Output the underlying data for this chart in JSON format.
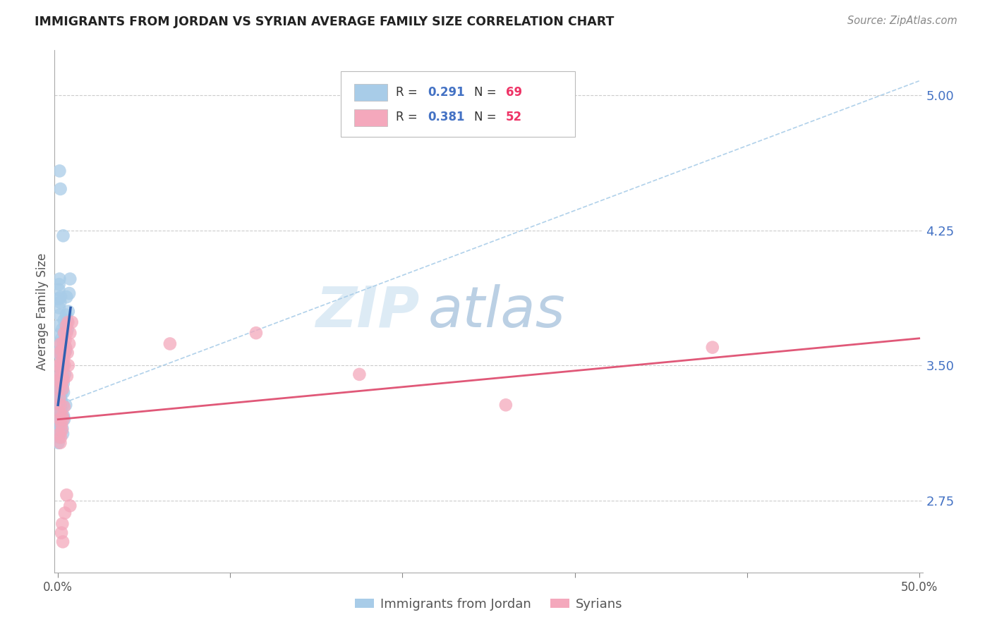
{
  "title": "IMMIGRANTS FROM JORDAN VS SYRIAN AVERAGE FAMILY SIZE CORRELATION CHART",
  "source": "Source: ZipAtlas.com",
  "ylabel": "Average Family Size",
  "right_yticks": [
    2.75,
    3.5,
    4.25,
    5.0
  ],
  "right_ytick_labels": [
    "2.75",
    "3.50",
    "4.25",
    "5.00"
  ],
  "legend_label_jordan": "Immigrants from Jordan",
  "legend_label_syrian": "Syrians",
  "jordan_color": "#a8cce8",
  "syrian_color": "#f4a8bc",
  "jordan_line_color": "#3060b0",
  "syrian_line_color": "#e05878",
  "dashed_line_color": "#a8cce8",
  "watermark_zip": "ZIP",
  "watermark_atlas": "atlas",
  "background_color": "#ffffff",
  "grid_color": "#cccccc",
  "title_color": "#222222",
  "right_axis_color": "#4472c4",
  "jordan_points": [
    [
      0.0008,
      3.44
    ],
    [
      0.001,
      3.42
    ],
    [
      0.0012,
      3.5
    ],
    [
      0.0013,
      3.38
    ],
    [
      0.0014,
      3.35
    ],
    [
      0.0015,
      3.4
    ],
    [
      0.0016,
      3.55
    ],
    [
      0.0016,
      3.32
    ],
    [
      0.0018,
      3.48
    ],
    [
      0.0019,
      3.58
    ],
    [
      0.002,
      3.3
    ],
    [
      0.0021,
      3.65
    ],
    [
      0.0022,
      3.42
    ],
    [
      0.0022,
      3.35
    ],
    [
      0.0024,
      3.7
    ],
    [
      0.0025,
      3.38
    ],
    [
      0.0026,
      3.55
    ],
    [
      0.0027,
      3.6
    ],
    [
      0.0028,
      3.45
    ],
    [
      0.0028,
      3.28
    ],
    [
      0.003,
      3.5
    ],
    [
      0.0031,
      3.4
    ],
    [
      0.0032,
      3.35
    ],
    [
      0.0034,
      3.68
    ],
    [
      0.0035,
      3.75
    ],
    [
      0.0038,
      3.58
    ],
    [
      0.0039,
      3.45
    ],
    [
      0.004,
      3.72
    ],
    [
      0.0042,
      3.6
    ],
    [
      0.0045,
      3.58
    ],
    [
      0.0048,
      3.78
    ],
    [
      0.005,
      3.88
    ],
    [
      0.0052,
      3.75
    ],
    [
      0.0055,
      3.7
    ],
    [
      0.006,
      3.8
    ],
    [
      0.0065,
      3.9
    ],
    [
      0.007,
      3.98
    ],
    [
      0.0009,
      4.58
    ],
    [
      0.0014,
      4.48
    ],
    [
      0.003,
      4.22
    ],
    [
      0.0022,
      3.22
    ],
    [
      0.0025,
      3.15
    ],
    [
      0.0028,
      3.12
    ],
    [
      0.0032,
      3.22
    ],
    [
      0.0018,
      3.25
    ],
    [
      0.0012,
      3.18
    ],
    [
      0.0036,
      3.2
    ],
    [
      0.0045,
      3.28
    ],
    [
      0.001,
      3.78
    ],
    [
      0.0007,
      3.82
    ],
    [
      0.0013,
      3.85
    ],
    [
      0.0015,
      3.88
    ],
    [
      0.0005,
      3.92
    ],
    [
      0.0004,
      3.87
    ],
    [
      0.0006,
      3.95
    ],
    [
      0.0009,
      3.98
    ],
    [
      0.0004,
      3.72
    ],
    [
      0.0006,
      3.67
    ],
    [
      0.0003,
      3.57
    ],
    [
      0.0004,
      3.62
    ],
    [
      0.0003,
      3.32
    ],
    [
      0.0003,
      3.27
    ],
    [
      0.0005,
      3.22
    ],
    [
      0.0006,
      3.17
    ],
    [
      0.0003,
      3.12
    ],
    [
      0.0002,
      3.07
    ],
    [
      0.0006,
      3.1
    ],
    [
      0.0012,
      3.14
    ],
    [
      0.0015,
      3.2
    ]
  ],
  "syrian_points": [
    [
      0.0004,
      3.42
    ],
    [
      0.0006,
      3.37
    ],
    [
      0.0009,
      3.32
    ],
    [
      0.001,
      3.24
    ],
    [
      0.0012,
      3.2
    ],
    [
      0.0013,
      3.28
    ],
    [
      0.0015,
      3.48
    ],
    [
      0.0016,
      3.62
    ],
    [
      0.0018,
      3.52
    ],
    [
      0.002,
      3.4
    ],
    [
      0.0022,
      3.58
    ],
    [
      0.0024,
      3.44
    ],
    [
      0.0026,
      3.5
    ],
    [
      0.0028,
      3.37
    ],
    [
      0.003,
      3.62
    ],
    [
      0.0032,
      3.42
    ],
    [
      0.0034,
      3.54
    ],
    [
      0.0036,
      3.68
    ],
    [
      0.0038,
      3.5
    ],
    [
      0.004,
      3.57
    ],
    [
      0.0042,
      3.64
    ],
    [
      0.0045,
      3.6
    ],
    [
      0.0048,
      3.72
    ],
    [
      0.005,
      3.68
    ],
    [
      0.0052,
      3.44
    ],
    [
      0.0055,
      3.57
    ],
    [
      0.0058,
      3.74
    ],
    [
      0.006,
      3.5
    ],
    [
      0.0065,
      3.62
    ],
    [
      0.007,
      3.68
    ],
    [
      0.008,
      3.74
    ],
    [
      0.001,
      3.12
    ],
    [
      0.0013,
      3.07
    ],
    [
      0.0016,
      3.1
    ],
    [
      0.002,
      3.17
    ],
    [
      0.0023,
      3.14
    ],
    [
      0.0026,
      3.22
    ],
    [
      0.003,
      3.2
    ],
    [
      0.0035,
      3.27
    ],
    [
      0.005,
      2.78
    ],
    [
      0.004,
      2.68
    ],
    [
      0.0025,
      2.62
    ],
    [
      0.007,
      2.72
    ],
    [
      0.002,
      2.57
    ],
    [
      0.0028,
      2.52
    ],
    [
      0.0007,
      3.57
    ],
    [
      0.0008,
      3.5
    ],
    [
      0.001,
      3.44
    ],
    [
      0.065,
      3.62
    ],
    [
      0.115,
      3.68
    ],
    [
      0.175,
      3.45
    ],
    [
      0.26,
      3.28
    ],
    [
      0.38,
      3.6
    ]
  ],
  "jordan_trend_x": [
    0.0,
    0.0073
  ],
  "jordan_trend_y": [
    3.28,
    3.82
  ],
  "syrian_trend_x": [
    0.0,
    0.5
  ],
  "syrian_trend_y": [
    3.2,
    3.65
  ],
  "dashed_trend_x": [
    0.0,
    0.5
  ],
  "dashed_trend_y": [
    3.28,
    5.08
  ],
  "xlim": [
    -0.002,
    0.502
  ],
  "ylim": [
    2.35,
    5.25
  ],
  "xticklabels": [
    "0.0%",
    "",
    "",
    "",
    "",
    "50.0%"
  ],
  "xticks": [
    0.0,
    0.1,
    0.2,
    0.3,
    0.4,
    0.5
  ]
}
